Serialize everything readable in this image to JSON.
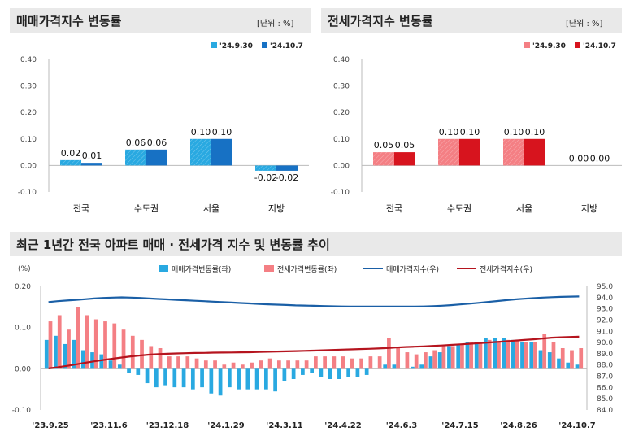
{
  "panels": {
    "sale_title": "매매가격지수 변동률",
    "sale_unit": "[단위 : %]",
    "jeonse_title": "전세가격지수 변동률",
    "jeonse_unit": "[단위 : %]",
    "trend_title": "최근 1년간 전국 아파트 매매 · 전세가격 지수 및 변동률 추이"
  },
  "colors": {
    "sale_light": "#29a9e1",
    "sale_dark": "#1771c4",
    "jeonse_light": "#f47f84",
    "jeonse_dark": "#d7141e",
    "sale_index_line": "#1a5fa6",
    "jeonse_index_line": "#b5141e"
  },
  "chart_data": [
    {
      "type": "bar",
      "categories": [
        "전국",
        "수도권",
        "서울",
        "지방"
      ],
      "series": [
        {
          "name": "'24.9.30",
          "values": [
            0.02,
            0.06,
            0.1,
            -0.02
          ]
        },
        {
          "name": "'24.10.7",
          "values": [
            0.01,
            0.06,
            0.1,
            -0.02
          ]
        }
      ],
      "ylim": [
        -0.1,
        0.4
      ],
      "yticks": [
        "0.40",
        "0.30",
        "0.20",
        "0.10",
        "0.00",
        "-0.10"
      ],
      "legend": "top-right"
    },
    {
      "type": "bar",
      "categories": [
        "전국",
        "수도권",
        "서울",
        "지방"
      ],
      "series": [
        {
          "name": "'24.9.30",
          "values": [
            0.05,
            0.1,
            0.1,
            0.0
          ]
        },
        {
          "name": "'24.10.7",
          "values": [
            0.05,
            0.1,
            0.1,
            0.0
          ]
        }
      ],
      "ylim": [
        -0.1,
        0.4
      ],
      "yticks": [
        "0.40",
        "0.30",
        "0.20",
        "0.10",
        "0.00",
        "-0.10"
      ],
      "legend": "top-right"
    },
    {
      "type": "bar",
      "ylabel_left": "(%)",
      "ylim_left": [
        -0.1,
        0.2
      ],
      "yticks_left": [
        "0.20",
        "0.10",
        "0.00",
        "-0.10"
      ],
      "ylim_right": [
        84.0,
        95.0
      ],
      "yticks_right": [
        "95.0",
        "94.0",
        "93.0",
        "92.0",
        "91.0",
        "90.0",
        "89.0",
        "88.0",
        "87.0",
        "86.0",
        "85.0",
        "84.0"
      ],
      "xtick_labels": [
        "'23.9.25",
        "'23.11.6",
        "'23.12.18",
        "'24.1.29",
        "'24.3.11",
        "'24.4.22",
        "'24.6.3",
        "'24.7.15",
        "'24.8.26",
        "'24.10.7"
      ],
      "legend": "top",
      "series": [
        {
          "name": "매매가격변동률(좌)",
          "kind": "bar",
          "values": [
            0.07,
            0.08,
            0.06,
            0.07,
            0.045,
            0.04,
            0.035,
            0.02,
            0.01,
            -0.01,
            -0.015,
            -0.035,
            -0.045,
            -0.04,
            -0.045,
            -0.045,
            -0.05,
            -0.045,
            -0.06,
            -0.065,
            -0.045,
            -0.05,
            -0.05,
            -0.05,
            -0.05,
            -0.055,
            -0.03,
            -0.025,
            -0.015,
            -0.01,
            -0.02,
            -0.025,
            -0.025,
            -0.02,
            -0.02,
            -0.015,
            0.0,
            0.01,
            0.01,
            0.0,
            0.005,
            0.01,
            0.03,
            0.04,
            0.055,
            0.06,
            0.065,
            0.065,
            0.075,
            0.075,
            0.075,
            0.07,
            0.065,
            0.065,
            0.045,
            0.04,
            0.025,
            0.015,
            0.01
          ]
        },
        {
          "name": "전세가격변동률(좌)",
          "kind": "bar",
          "values": [
            0.115,
            0.13,
            0.095,
            0.15,
            0.13,
            0.12,
            0.115,
            0.11,
            0.095,
            0.08,
            0.07,
            0.055,
            0.05,
            0.03,
            0.03,
            0.03,
            0.025,
            0.02,
            0.02,
            0.01,
            0.015,
            0.01,
            0.015,
            0.02,
            0.025,
            0.02,
            0.02,
            0.02,
            0.02,
            0.03,
            0.03,
            0.03,
            0.03,
            0.025,
            0.025,
            0.03,
            0.03,
            0.075,
            0.05,
            0.04,
            0.035,
            0.04,
            0.045,
            0.055,
            0.055,
            0.06,
            0.065,
            0.065,
            0.07,
            0.065,
            0.07,
            0.07,
            0.065,
            0.065,
            0.085,
            0.065,
            0.05,
            0.045,
            0.05
          ]
        },
        {
          "name": "매매가격지수(우)",
          "kind": "line",
          "values": [
            93.6,
            93.68,
            93.74,
            93.8,
            93.86,
            93.92,
            93.97,
            94.0,
            94.02,
            94.0,
            93.97,
            93.92,
            93.88,
            93.84,
            93.8,
            93.76,
            93.72,
            93.68,
            93.64,
            93.6,
            93.56,
            93.52,
            93.48,
            93.44,
            93.4,
            93.37,
            93.34,
            93.31,
            93.29,
            93.27,
            93.25,
            93.23,
            93.21,
            93.2,
            93.2,
            93.2,
            93.2,
            93.2,
            93.2,
            93.2,
            93.2,
            93.21,
            93.24,
            93.28,
            93.33,
            93.39,
            93.46,
            93.53,
            93.61,
            93.69,
            93.77,
            93.84,
            93.9,
            93.95,
            94.0,
            94.04,
            94.07,
            94.09,
            94.1
          ]
        },
        {
          "name": "전세가격지수(우)",
          "kind": "line",
          "values": [
            87.7,
            87.8,
            87.92,
            88.06,
            88.2,
            88.33,
            88.45,
            88.56,
            88.67,
            88.77,
            88.85,
            88.92,
            88.97,
            89.0,
            89.03,
            89.05,
            89.07,
            89.08,
            89.1,
            89.11,
            89.12,
            89.13,
            89.14,
            89.16,
            89.18,
            89.2,
            89.22,
            89.24,
            89.26,
            89.28,
            89.31,
            89.34,
            89.37,
            89.39,
            89.42,
            89.44,
            89.47,
            89.51,
            89.56,
            89.6,
            89.63,
            89.66,
            89.7,
            89.74,
            89.79,
            89.84,
            89.89,
            89.94,
            90.0,
            90.05,
            90.11,
            90.17,
            90.23,
            90.29,
            90.36,
            90.43,
            90.47,
            90.5,
            90.52
          ]
        }
      ]
    }
  ]
}
